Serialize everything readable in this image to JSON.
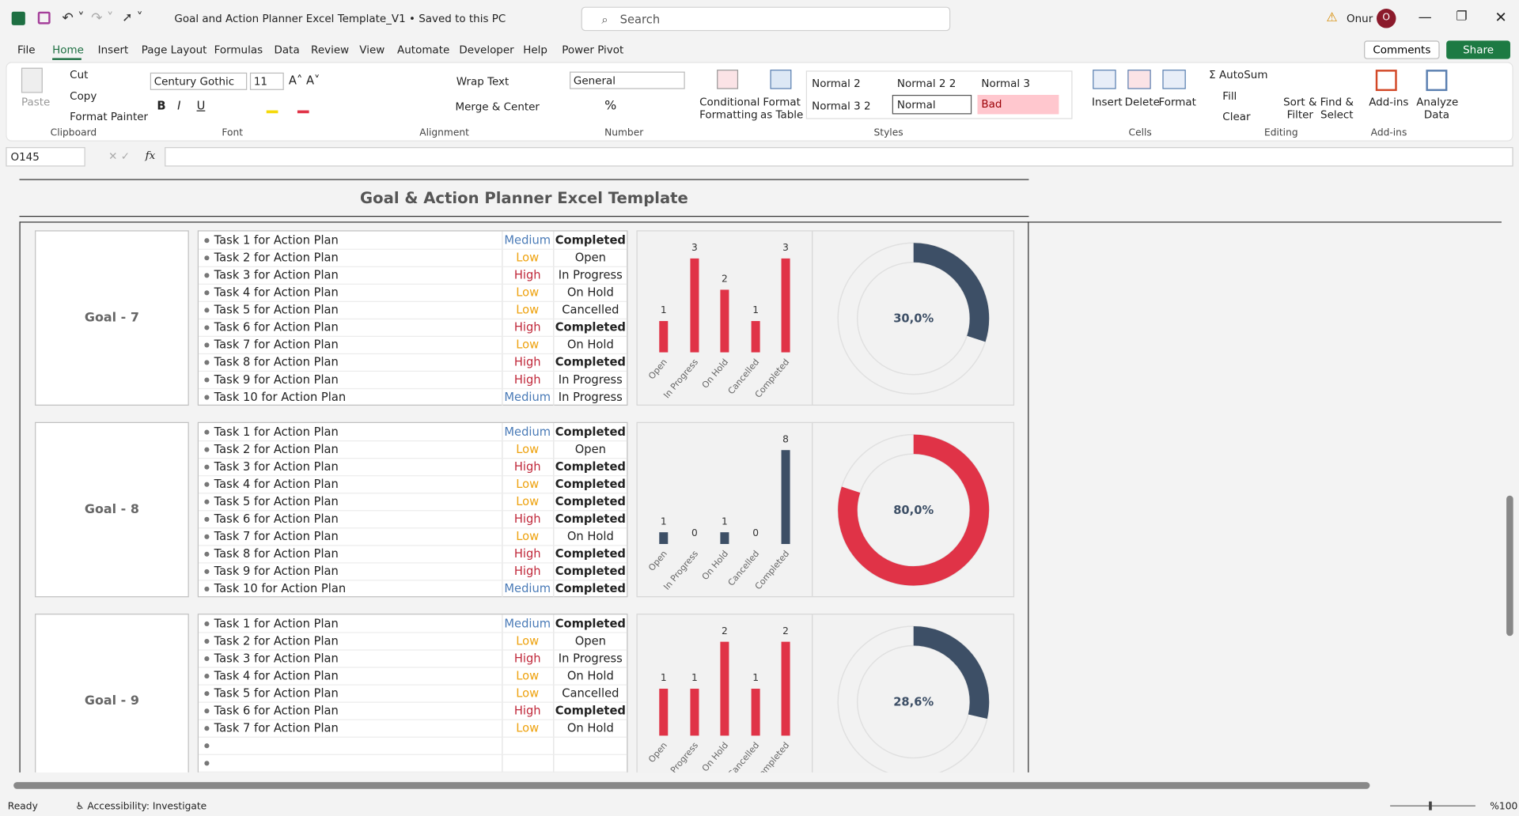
{
  "title_bar": {
    "document": "Goal and Action Planner Excel Template_V1 • Saved to this PC",
    "search": "Search",
    "user": "Onur",
    "avatar": "O"
  },
  "tabs": [
    "File",
    "Home",
    "Insert",
    "Page Layout",
    "Formulas",
    "Data",
    "Review",
    "View",
    "Automate",
    "Developer",
    "Help",
    "Power Pivot"
  ],
  "actions": {
    "comments": "Comments",
    "share": "Share"
  },
  "ribbon": {
    "clipboard": {
      "paste": "Paste",
      "cut": "Cut",
      "copy": "Copy",
      "format_painter": "Format Painter",
      "label": "Clipboard"
    },
    "font": {
      "name": "Century Gothic",
      "size": "11",
      "label": "Font"
    },
    "alignment": {
      "wrap_text": "Wrap Text",
      "merge_center": "Merge & Center",
      "label": "Alignment"
    },
    "number": {
      "format": "General",
      "label": "Number"
    },
    "styles": {
      "conditional_formatting": "Conditional Formatting",
      "format_as_table": "Format as Table",
      "gallery": [
        "Normal 2",
        "Normal 2 2",
        "Normal 3",
        "Normal 3 2",
        "Normal",
        "Bad"
      ],
      "label": "Styles"
    },
    "cells": {
      "insert": "Insert",
      "delete": "Delete",
      "format": "Format",
      "label": "Cells"
    },
    "editing": {
      "autosum": "AutoSum",
      "fill": "Fill",
      "clear": "Clear",
      "sort_filter": "Sort & Filter",
      "find_select": "Find & Select",
      "label": "Editing"
    },
    "addins": {
      "addins": "Add-ins",
      "analyze_data": "Analyze Data",
      "label": "Add-ins"
    }
  },
  "formula_bar": {
    "name_box": "O145",
    "fx": "fx"
  },
  "sheet": {
    "title": "Goal & Action Planner Excel Template",
    "priority_colors": {
      "Medium": "#4a7bb7",
      "Low": "#eea20e",
      "High": "#c0283a"
    },
    "status_weights": {
      "Completed": "bold"
    },
    "goals": [
      {
        "label": "Goal - 7",
        "tasks": [
          [
            "Task 1 for Action Plan",
            "Medium",
            "Completed"
          ],
          [
            "Task 2 for Action Plan",
            "Low",
            "Open"
          ],
          [
            "Task 3 for Action Plan",
            "High",
            "In Progress"
          ],
          [
            "Task 4 for Action Plan",
            "Low",
            "On Hold"
          ],
          [
            "Task 5 for Action Plan",
            "Low",
            "Cancelled"
          ],
          [
            "Task 6 for Action Plan",
            "High",
            "Completed"
          ],
          [
            "Task 7 for Action Plan",
            "Low",
            "On Hold"
          ],
          [
            "Task 8 for Action Plan",
            "High",
            "Completed"
          ],
          [
            "Task 9 for Action Plan",
            "High",
            "In Progress"
          ],
          [
            "Task 10 for Action Plan",
            "Medium",
            "In Progress"
          ]
        ]
      },
      {
        "label": "Goal - 8",
        "tasks": [
          [
            "Task 1 for Action Plan",
            "Medium",
            "Completed"
          ],
          [
            "Task 2 for Action Plan",
            "Low",
            "Open"
          ],
          [
            "Task 3 for Action Plan",
            "High",
            "Completed"
          ],
          [
            "Task 4 for Action Plan",
            "Low",
            "Completed"
          ],
          [
            "Task 5 for Action Plan",
            "Low",
            "Completed"
          ],
          [
            "Task 6 for Action Plan",
            "High",
            "Completed"
          ],
          [
            "Task 7 for Action Plan",
            "Low",
            "On Hold"
          ],
          [
            "Task 8 for Action Plan",
            "High",
            "Completed"
          ],
          [
            "Task 9 for Action Plan",
            "High",
            "Completed"
          ],
          [
            "Task 10 for Action Plan",
            "Medium",
            "Completed"
          ]
        ]
      },
      {
        "label": "Goal - 9",
        "tasks": [
          [
            "Task 1 for Action Plan",
            "Medium",
            "Completed"
          ],
          [
            "Task 2 for Action Plan",
            "Low",
            "Open"
          ],
          [
            "Task 3 for Action Plan",
            "High",
            "In Progress"
          ],
          [
            "Task 4 for Action Plan",
            "Low",
            "On Hold"
          ],
          [
            "Task 5 for Action Plan",
            "Low",
            "Cancelled"
          ],
          [
            "Task 6 for Action Plan",
            "High",
            "Completed"
          ],
          [
            "Task 7 for Action Plan",
            "Low",
            "On Hold"
          ]
        ]
      }
    ]
  },
  "status_bar": {
    "ready": "Ready",
    "accessibility": "Accessibility: Investigate",
    "zoom": "%100"
  },
  "chart_data": [
    {
      "type": "bar",
      "categories": [
        "Open",
        "In Progress",
        "On Hold",
        "Cancelled",
        "Completed"
      ],
      "values": [
        1,
        3,
        2,
        1,
        3
      ],
      "color": "#e03347"
    },
    {
      "type": "donut",
      "values": [
        30.0
      ],
      "value_labels": [
        "30,0%"
      ],
      "color": "#3d4f66"
    },
    {
      "type": "bar",
      "categories": [
        "Open",
        "In Progress",
        "On Hold",
        "Cancelled",
        "Completed"
      ],
      "values": [
        1,
        0,
        1,
        0,
        8
      ],
      "color": "#3d4f66"
    },
    {
      "type": "donut",
      "values": [
        80.0
      ],
      "value_labels": [
        "80,0%"
      ],
      "color": "#e03347"
    },
    {
      "type": "bar",
      "categories": [
        "Open",
        "In Progress",
        "On Hold",
        "Cancelled",
        "Completed"
      ],
      "values": [
        1,
        1,
        2,
        1,
        2
      ],
      "color": "#e03347"
    },
    {
      "type": "donut",
      "values": [
        28.6
      ],
      "value_labels": [
        "28,6%"
      ],
      "color": "#3d4f66"
    }
  ]
}
